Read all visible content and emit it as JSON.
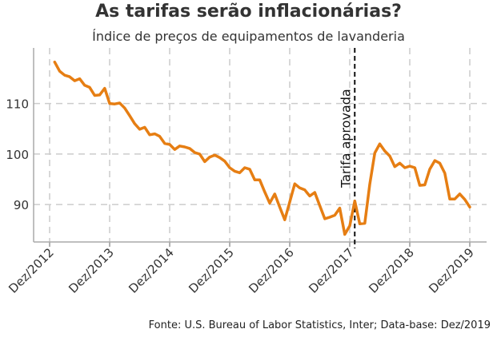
{
  "chart_data": {
    "type": "line",
    "title": "As tarifas serão inflacionárias?",
    "subtitle": "Índice de preços de equipamentos de lavanderia",
    "source": "Fonte: U.S. Bureau of Labor Statistics, Inter; Data-base: Dez/2019",
    "xlabel": "",
    "ylabel": "",
    "x_start": "Jan/2013",
    "x_end": "Dez/2019",
    "x_ticks": [
      "Dez/2012",
      "Dez/2013",
      "Dez/2014",
      "Dez/2015",
      "Dez/2016",
      "Dez/2017",
      "Dez/2018",
      "Dez/2019"
    ],
    "y_ticks": [
      90,
      100,
      110
    ],
    "ylim": [
      82.6,
      121
    ],
    "grid": true,
    "series": [
      {
        "name": "Índice de preços",
        "color": "#e67e13",
        "values": [
          118.2,
          116.4,
          115.6,
          115.3,
          114.5,
          114.9,
          113.6,
          113.2,
          111.6,
          111.7,
          113.0,
          110.0,
          109.9,
          110.1,
          109.1,
          107.6,
          106.0,
          104.9,
          105.3,
          103.8,
          104.0,
          103.5,
          102.1,
          101.9,
          100.9,
          101.6,
          101.4,
          101.1,
          100.3,
          100.0,
          98.5,
          99.4,
          99.8,
          99.3,
          98.6,
          97.3,
          96.6,
          96.3,
          97.3,
          97.0,
          94.9,
          94.9,
          92.5,
          90.3,
          92.1,
          89.5,
          87.0,
          90.5,
          94.1,
          93.3,
          92.9,
          91.7,
          92.4,
          89.8,
          87.2,
          87.5,
          87.9,
          89.3,
          84.1,
          85.8,
          90.7,
          86.2,
          86.3,
          94.0,
          100.2,
          102.0,
          100.6,
          99.6,
          97.5,
          98.2,
          97.3,
          97.6,
          97.3,
          93.8,
          93.9,
          97.0,
          98.7,
          98.2,
          96.2,
          91.1,
          91.1,
          92.1,
          91.0,
          89.5
        ]
      }
    ],
    "annotations": [
      {
        "text": "Tarifa aprovada",
        "at_month": "Jan/2018",
        "style": "dashed vertical line"
      }
    ]
  }
}
